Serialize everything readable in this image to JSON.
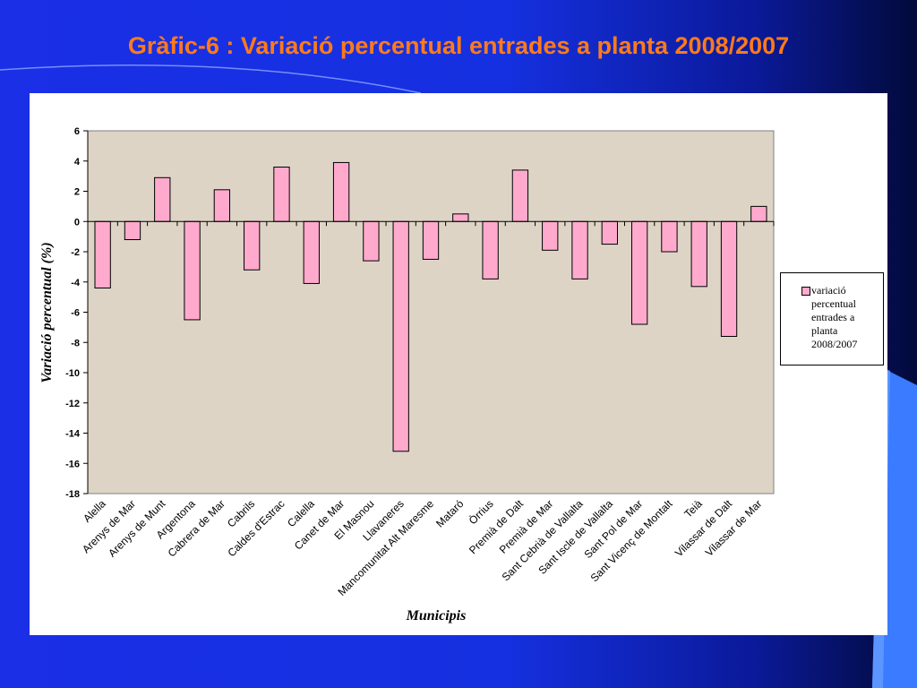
{
  "slide": {
    "title": "Gràfic-6 : Variació percentual entrades a planta 2008/2007"
  },
  "colors": {
    "bar_fill": "#ffaacc",
    "plot_background": "#ddd4c6",
    "title_color": "#ff7a1a"
  },
  "chart_data": {
    "type": "bar",
    "title": "",
    "xlabel": "Municipis",
    "ylabel": "Variació percentual (%)",
    "ylim": [
      -18,
      6
    ],
    "yticks": [
      6,
      4,
      2,
      0,
      -2,
      -4,
      -6,
      -8,
      -10,
      -12,
      -14,
      -16,
      -18
    ],
    "grid": false,
    "legend_position": "right",
    "categories": [
      "Alella",
      "Arenys de Mar",
      "Arenys de Munt",
      "Argentona",
      "Cabrera de Mar",
      "Cabrils",
      "Caldes d'Estrac",
      "Calella",
      "Canet de Mar",
      "El Masnou",
      "Llavaneres",
      "Mancomunitat Alt Maresme",
      "Mataró",
      "Òrrius",
      "Premià de Dalt",
      "Premià de Mar",
      "Sant Cebrià de Vallalta",
      "Sant Iscle de Vallalta",
      "Sant Pol de Mar",
      "Sant Vicenç de Montalt",
      "Teià",
      "Vilassar de Dalt",
      "Vilassar de Mar"
    ],
    "series": [
      {
        "name": "variació percentual entrades a planta 2008/2007",
        "values": [
          -4.4,
          -1.2,
          2.9,
          -6.5,
          2.1,
          -3.2,
          3.6,
          -4.1,
          3.9,
          -2.6,
          -15.2,
          -2.5,
          0.5,
          -3.8,
          3.4,
          -1.9,
          -3.8,
          -1.5,
          -6.8,
          -2.0,
          -4.3,
          -7.6,
          1.0
        ]
      }
    ]
  }
}
